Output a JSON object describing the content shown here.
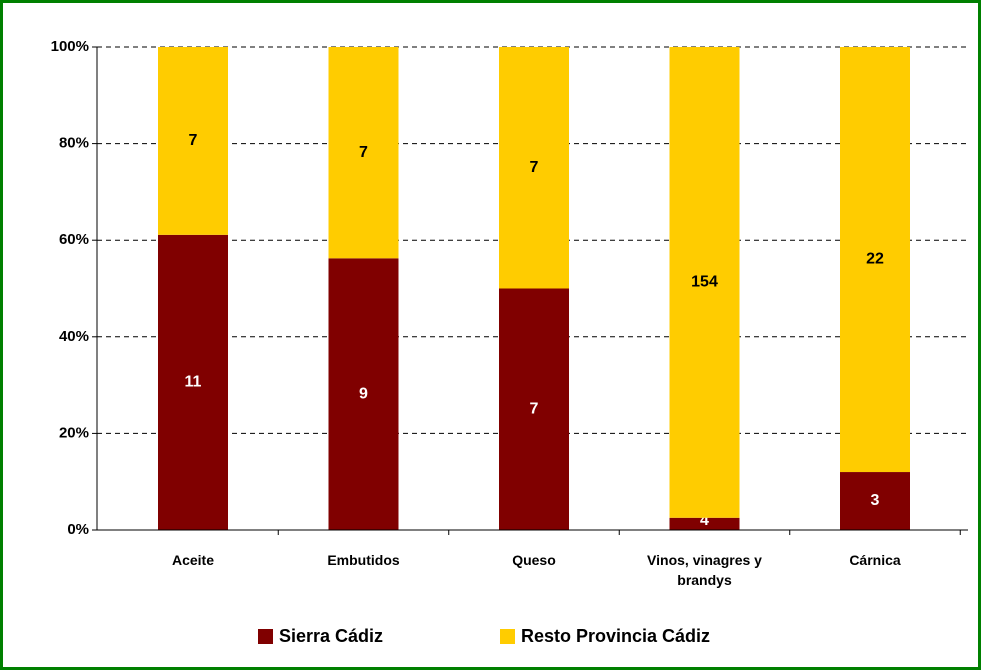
{
  "chart_data": {
    "type": "bar",
    "stacking": "percent",
    "categories": [
      "Aceite",
      "Embutidos",
      "Queso",
      "Vinos, vinagres y brandys",
      "Cárnica"
    ],
    "series": [
      {
        "name": "Sierra Cádiz",
        "color": "#800000",
        "label_color": "#ffffff",
        "values": [
          11,
          9,
          7,
          4,
          3
        ]
      },
      {
        "name": "Resto Provincia Cádiz",
        "color": "#ffcc00",
        "label_color": "#000000",
        "values": [
          7,
          7,
          7,
          154,
          22
        ]
      }
    ],
    "ylim": [
      0,
      100
    ],
    "yticks": [
      {
        "value": 0,
        "label": "0%"
      },
      {
        "value": 20,
        "label": "20%"
      },
      {
        "value": 40,
        "label": "40%"
      },
      {
        "value": 60,
        "label": "60%"
      },
      {
        "value": 80,
        "label": "80%"
      },
      {
        "value": 100,
        "label": "100%"
      }
    ],
    "grid": true,
    "legend": "bottom"
  }
}
